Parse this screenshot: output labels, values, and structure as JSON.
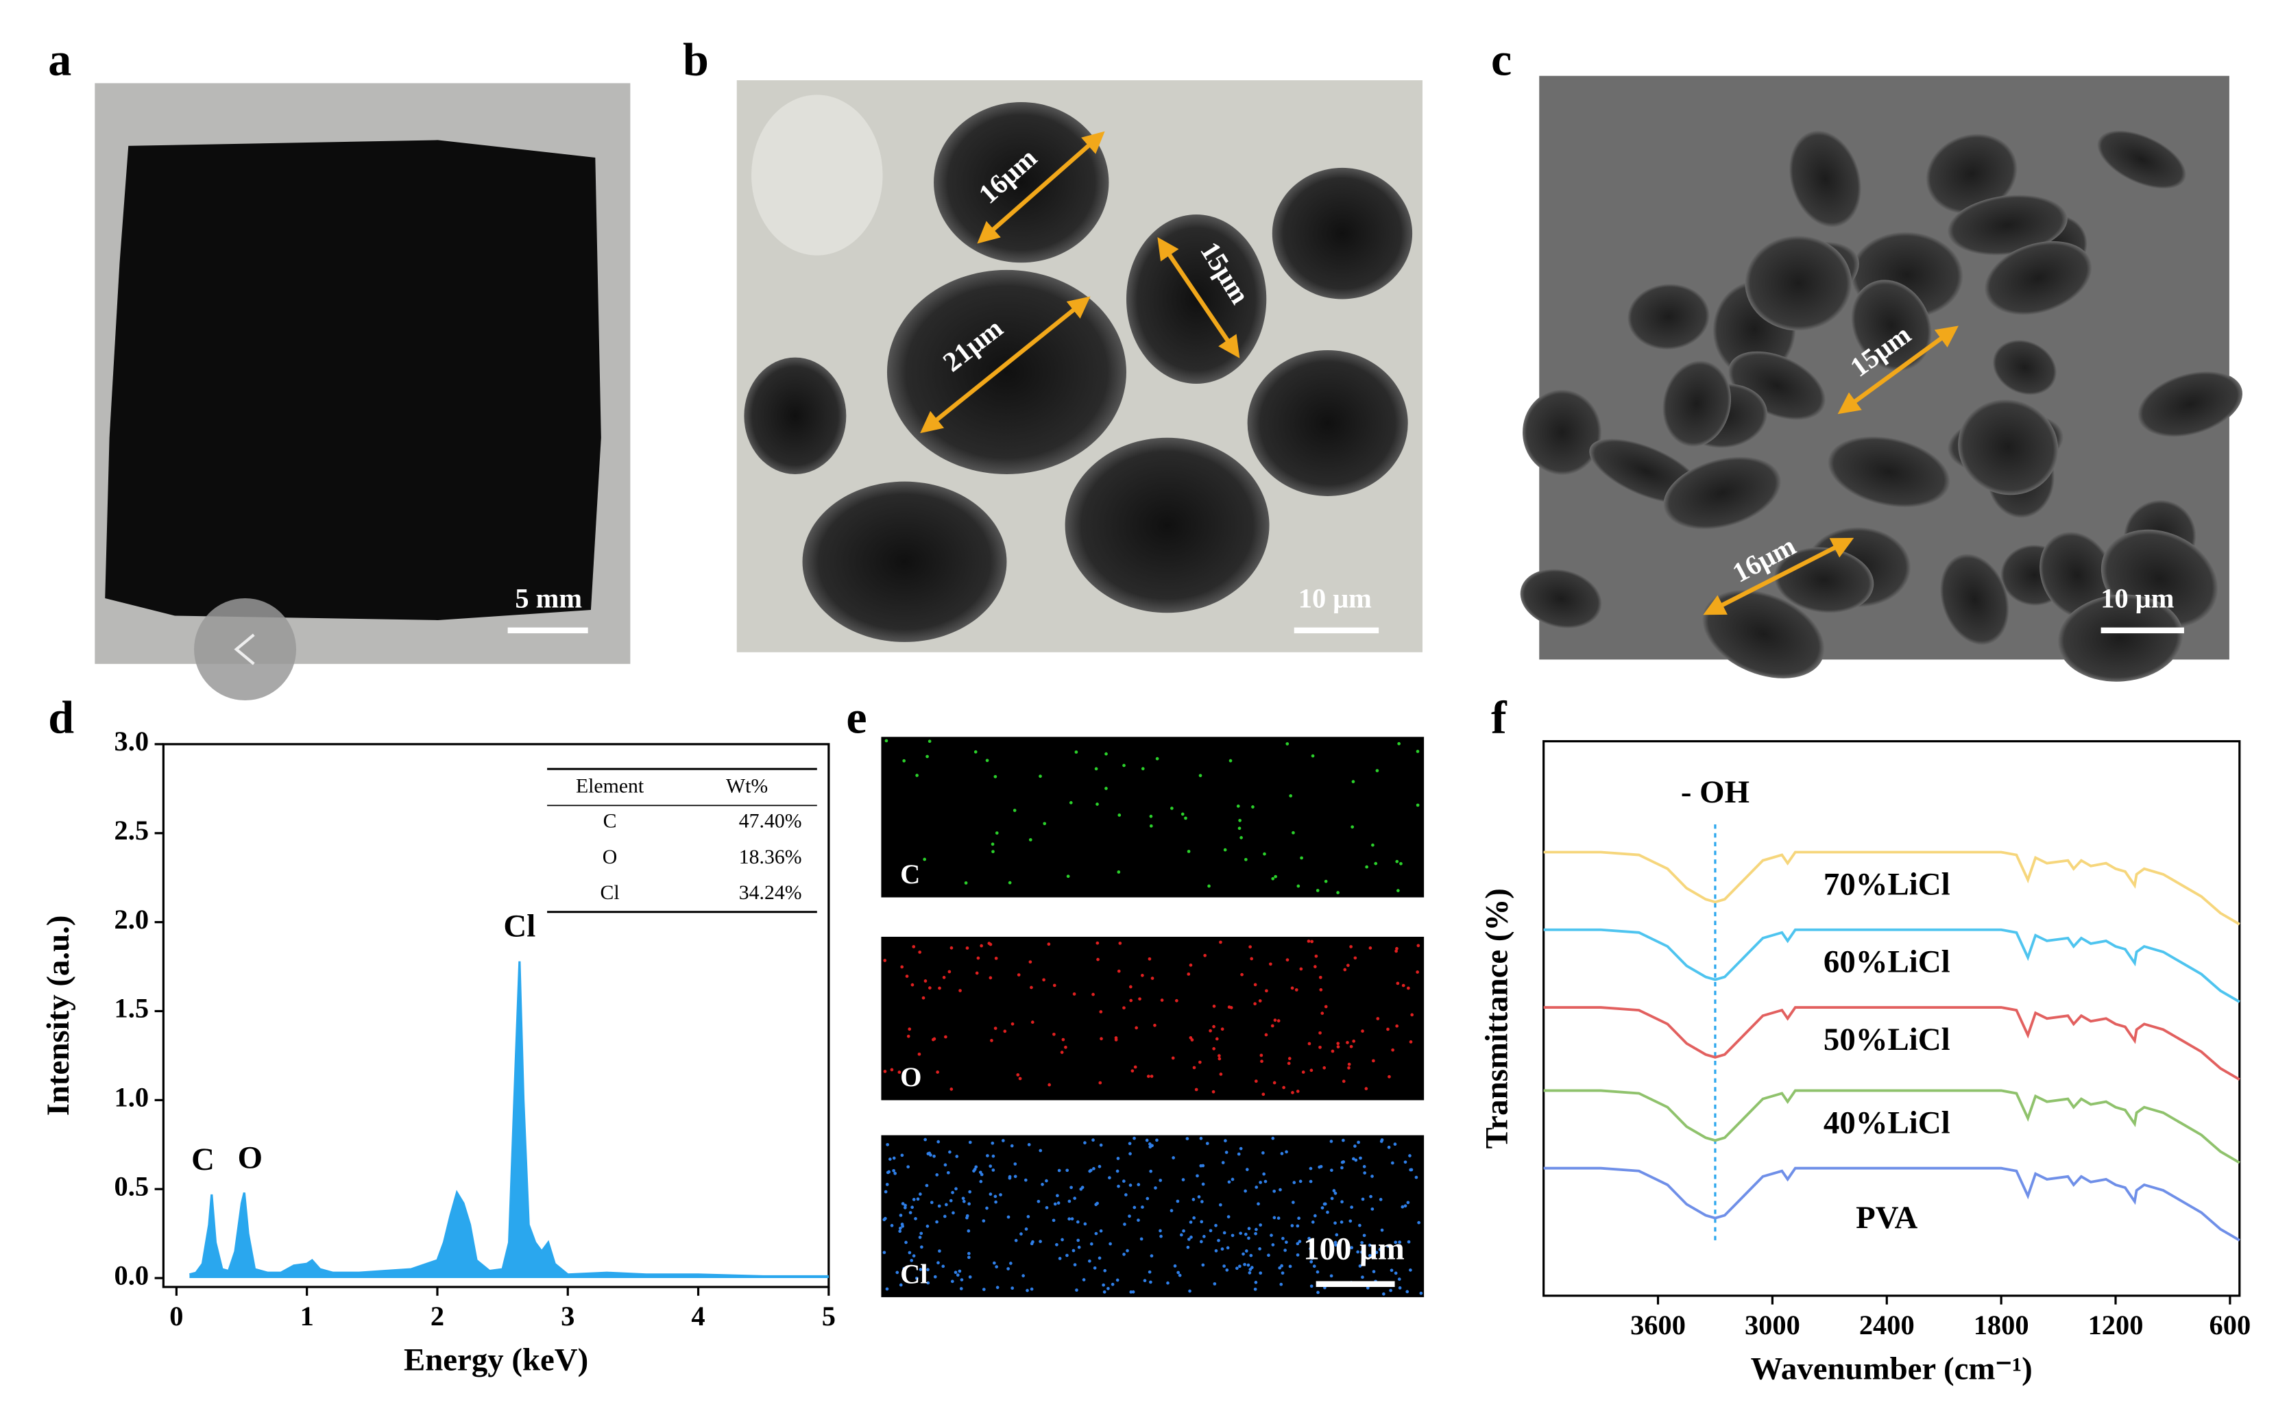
{
  "panels": {
    "a": {
      "label": "a",
      "scale_bar": "5 mm"
    },
    "b": {
      "label": "b",
      "annotations": [
        "16μm",
        "15μm",
        "21μm"
      ],
      "scale_bar": "10 μm"
    },
    "c": {
      "label": "c",
      "annotations": [
        "15μm",
        "16μm"
      ],
      "scale_bar": "10 μm"
    },
    "d": {
      "label": "d"
    },
    "e": {
      "label": "e",
      "maps": [
        "C",
        "O",
        "Cl"
      ],
      "scale_bar": "100 μm"
    },
    "f": {
      "label": "f"
    }
  },
  "chart_data": [
    {
      "type": "area",
      "x_label": "Energy (keV)",
      "y_label": "Intensity (a.u.)",
      "color": "#2aa7ee",
      "x": [
        0.1,
        0.15,
        0.2,
        0.25,
        0.27,
        0.3,
        0.35,
        0.4,
        0.45,
        0.5,
        0.52,
        0.55,
        0.6,
        0.7,
        0.8,
        0.9,
        1.0,
        1.04,
        1.1,
        1.2,
        1.4,
        1.6,
        1.8,
        2.0,
        2.05,
        2.1,
        2.15,
        2.2,
        2.25,
        2.3,
        2.4,
        2.5,
        2.55,
        2.6,
        2.63,
        2.66,
        2.7,
        2.75,
        2.8,
        2.85,
        2.9,
        3.0,
        3.3,
        3.6,
        4.0,
        4.5,
        5.0
      ],
      "values": [
        0.02,
        0.03,
        0.08,
        0.3,
        0.47,
        0.2,
        0.05,
        0.04,
        0.15,
        0.42,
        0.48,
        0.25,
        0.05,
        0.03,
        0.03,
        0.07,
        0.08,
        0.1,
        0.05,
        0.03,
        0.03,
        0.04,
        0.05,
        0.1,
        0.2,
        0.35,
        0.48,
        0.42,
        0.3,
        0.1,
        0.04,
        0.05,
        0.2,
        1.2,
        1.78,
        1.0,
        0.3,
        0.2,
        0.15,
        0.2,
        0.08,
        0.02,
        0.03,
        0.02,
        0.02,
        0.01,
        0.01
      ],
      "xlim": [
        -0.1,
        5
      ],
      "ylim": [
        -0.05,
        3
      ],
      "xticks": [
        0,
        1,
        2,
        3,
        4,
        5
      ],
      "yticks": [
        {
          "value": 0,
          "label": "0.0"
        },
        0.5,
        {
          "value": 1,
          "label": "1.0"
        },
        1.5,
        {
          "value": 2,
          "label": "2.0"
        },
        2.5,
        {
          "value": 3,
          "label": "3.0"
        }
      ],
      "annotations": [
        {
          "text": "C",
          "x": 0.27
        },
        {
          "text": "O",
          "x": 0.52
        },
        {
          "text": "Cl",
          "x": 2.63
        }
      ],
      "table": {
        "columns": [
          "Element",
          "Wt%"
        ],
        "rows": [
          [
            "C",
            "47.40%"
          ],
          [
            "O",
            "18.36%"
          ],
          [
            "Cl",
            "34.24%"
          ]
        ]
      }
    },
    {
      "type": "line",
      "x_label": "Wavenumber (cm⁻¹)",
      "y_label": "Transmittance (%)",
      "x": [
        4200,
        3900,
        3700,
        3550,
        3450,
        3350,
        3300,
        3250,
        3150,
        3050,
        2950,
        2920,
        2880,
        2700,
        2400,
        2000,
        1800,
        1720,
        1660,
        1620,
        1560,
        1450,
        1420,
        1380,
        1330,
        1250,
        1200,
        1150,
        1100,
        1090,
        1050,
        950,
        850,
        750,
        650,
        550
      ],
      "xlim": [
        4200,
        550
      ],
      "ylim": [
        0,
        10
      ],
      "xticks": [
        3600,
        3000,
        2400,
        1800,
        1200,
        600
      ],
      "annotations": [
        {
          "text": "- OH",
          "x": 3300
        }
      ],
      "series": [
        {
          "name": "70%LiCl",
          "color": "#f6d67c",
          "values": [
            8.0,
            8.0,
            7.95,
            7.7,
            7.35,
            7.15,
            7.1,
            7.15,
            7.5,
            7.85,
            7.95,
            7.8,
            8.0,
            8.0,
            8.0,
            8.0,
            8.0,
            7.95,
            7.5,
            7.9,
            7.8,
            7.85,
            7.7,
            7.85,
            7.75,
            7.8,
            7.7,
            7.65,
            7.4,
            7.6,
            7.7,
            7.6,
            7.4,
            7.2,
            6.9,
            6.7
          ]
        },
        {
          "name": "60%LiCl",
          "color": "#4ec4ef",
          "values": [
            6.6,
            6.6,
            6.55,
            6.3,
            5.95,
            5.75,
            5.7,
            5.75,
            6.1,
            6.45,
            6.55,
            6.4,
            6.6,
            6.6,
            6.6,
            6.6,
            6.6,
            6.55,
            6.1,
            6.5,
            6.4,
            6.45,
            6.3,
            6.45,
            6.35,
            6.4,
            6.3,
            6.25,
            6.0,
            6.2,
            6.3,
            6.2,
            6.0,
            5.8,
            5.5,
            5.3
          ]
        },
        {
          "name": "50%LiCl",
          "color": "#e2605f",
          "values": [
            5.2,
            5.2,
            5.15,
            4.9,
            4.55,
            4.35,
            4.3,
            4.35,
            4.7,
            5.05,
            5.15,
            5.0,
            5.2,
            5.2,
            5.2,
            5.2,
            5.2,
            5.15,
            4.7,
            5.1,
            5.0,
            5.05,
            4.9,
            5.05,
            4.95,
            5.0,
            4.9,
            4.85,
            4.6,
            4.8,
            4.9,
            4.8,
            4.6,
            4.4,
            4.1,
            3.9
          ]
        },
        {
          "name": "40%LiCl",
          "color": "#8fc26c",
          "values": [
            3.7,
            3.7,
            3.65,
            3.4,
            3.05,
            2.85,
            2.8,
            2.85,
            3.2,
            3.55,
            3.65,
            3.5,
            3.7,
            3.7,
            3.7,
            3.7,
            3.7,
            3.65,
            3.2,
            3.6,
            3.5,
            3.55,
            3.4,
            3.55,
            3.45,
            3.5,
            3.4,
            3.35,
            3.1,
            3.3,
            3.4,
            3.3,
            3.1,
            2.9,
            2.6,
            2.4
          ]
        },
        {
          "name": "PVA",
          "color": "#6f8fe8",
          "values": [
            2.3,
            2.3,
            2.25,
            2.0,
            1.65,
            1.45,
            1.4,
            1.45,
            1.8,
            2.15,
            2.25,
            2.1,
            2.3,
            2.3,
            2.3,
            2.3,
            2.3,
            2.25,
            1.8,
            2.2,
            2.1,
            2.15,
            2.0,
            2.15,
            2.05,
            2.1,
            2.0,
            1.95,
            1.7,
            1.9,
            2.0,
            1.9,
            1.7,
            1.5,
            1.2,
            1.0
          ]
        }
      ]
    }
  ]
}
